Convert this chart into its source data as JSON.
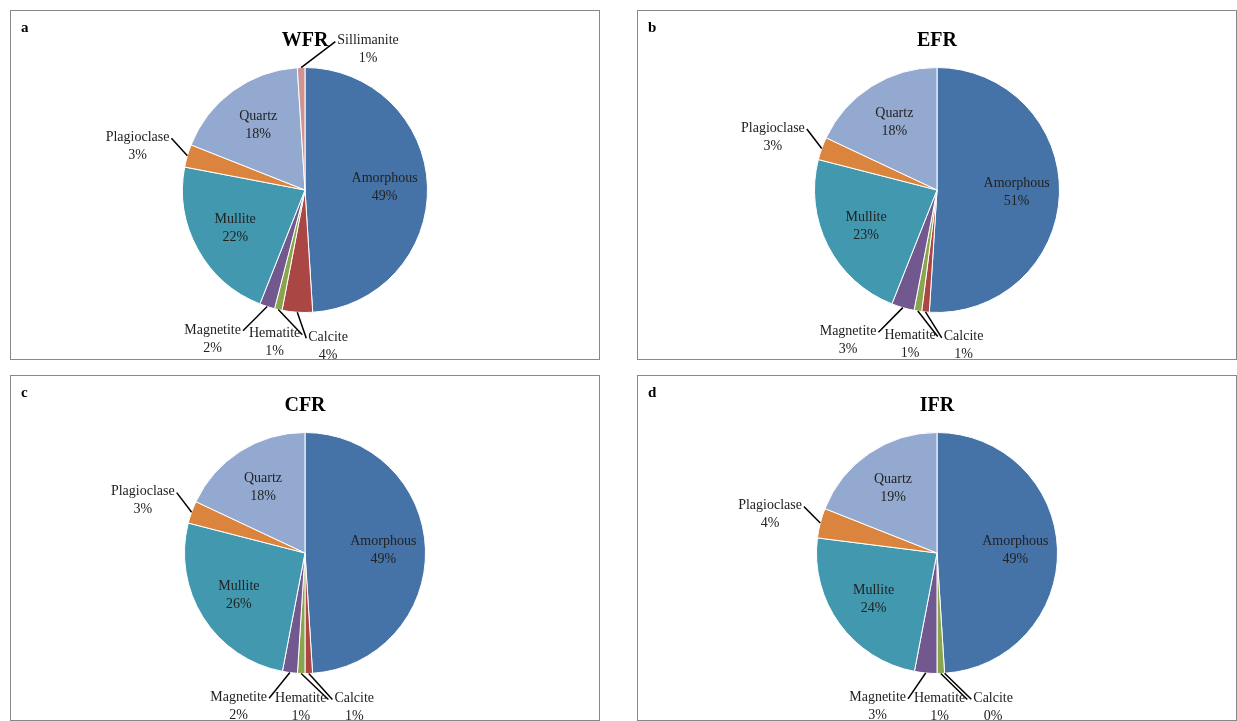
{
  "chart_data": [
    {
      "type": "pie",
      "title": "WFR",
      "annotations": [
        "a"
      ],
      "categories": [
        "Amorphous",
        "Calcite",
        "Hematite",
        "Magnetite",
        "Mullite",
        "Plagioclase",
        "Quartz",
        "Sillimanite"
      ],
      "values": [
        49,
        4,
        1,
        2,
        22,
        3,
        18,
        1
      ],
      "value_labels": [
        "49%",
        "4%",
        "1%",
        "2%",
        "22%",
        "3%",
        "18%",
        "1%"
      ],
      "colors": [
        "#4572a7",
        "#aa4643",
        "#89a54e",
        "#71588f",
        "#4198af",
        "#db843d",
        "#93a9cf",
        "#d19392"
      ]
    },
    {
      "type": "pie",
      "title": "EFR",
      "annotations": [
        "b"
      ],
      "categories": [
        "Amorphous",
        "Calcite",
        "Hematite",
        "Magnetite",
        "Mullite",
        "Plagioclase",
        "Quartz"
      ],
      "values": [
        51,
        1,
        1,
        3,
        23,
        3,
        18
      ],
      "value_labels": [
        "51%",
        "1%",
        "1%",
        "3%",
        "23%",
        "3%",
        "18%"
      ],
      "colors": [
        "#4572a7",
        "#aa4643",
        "#89a54e",
        "#71588f",
        "#4198af",
        "#db843d",
        "#93a9cf"
      ]
    },
    {
      "type": "pie",
      "title": "CFR",
      "annotations": [
        "c"
      ],
      "categories": [
        "Amorphous",
        "Calcite",
        "Hematite",
        "Magnetite",
        "Mullite",
        "Plagioclase",
        "Quartz"
      ],
      "values": [
        49,
        1,
        1,
        2,
        26,
        3,
        18
      ],
      "value_labels": [
        "49%",
        "1%",
        "1%",
        "2%",
        "26%",
        "3%",
        "18%"
      ],
      "colors": [
        "#4572a7",
        "#aa4643",
        "#89a54e",
        "#71588f",
        "#4198af",
        "#db843d",
        "#93a9cf"
      ]
    },
    {
      "type": "pie",
      "title": "IFR",
      "annotations": [
        "d"
      ],
      "categories": [
        "Amorphous",
        "Calcite",
        "Hematite",
        "Magnetite",
        "Mullite",
        "Plagioclase",
        "Quartz"
      ],
      "values": [
        49,
        0,
        1,
        3,
        24,
        4,
        19
      ],
      "value_labels": [
        "49%",
        "0%",
        "1%",
        "3%",
        "24%",
        "4%",
        "19%"
      ],
      "colors": [
        "#4572a7",
        "#aa4643",
        "#89a54e",
        "#71588f",
        "#4198af",
        "#db843d",
        "#93a9cf"
      ]
    }
  ]
}
